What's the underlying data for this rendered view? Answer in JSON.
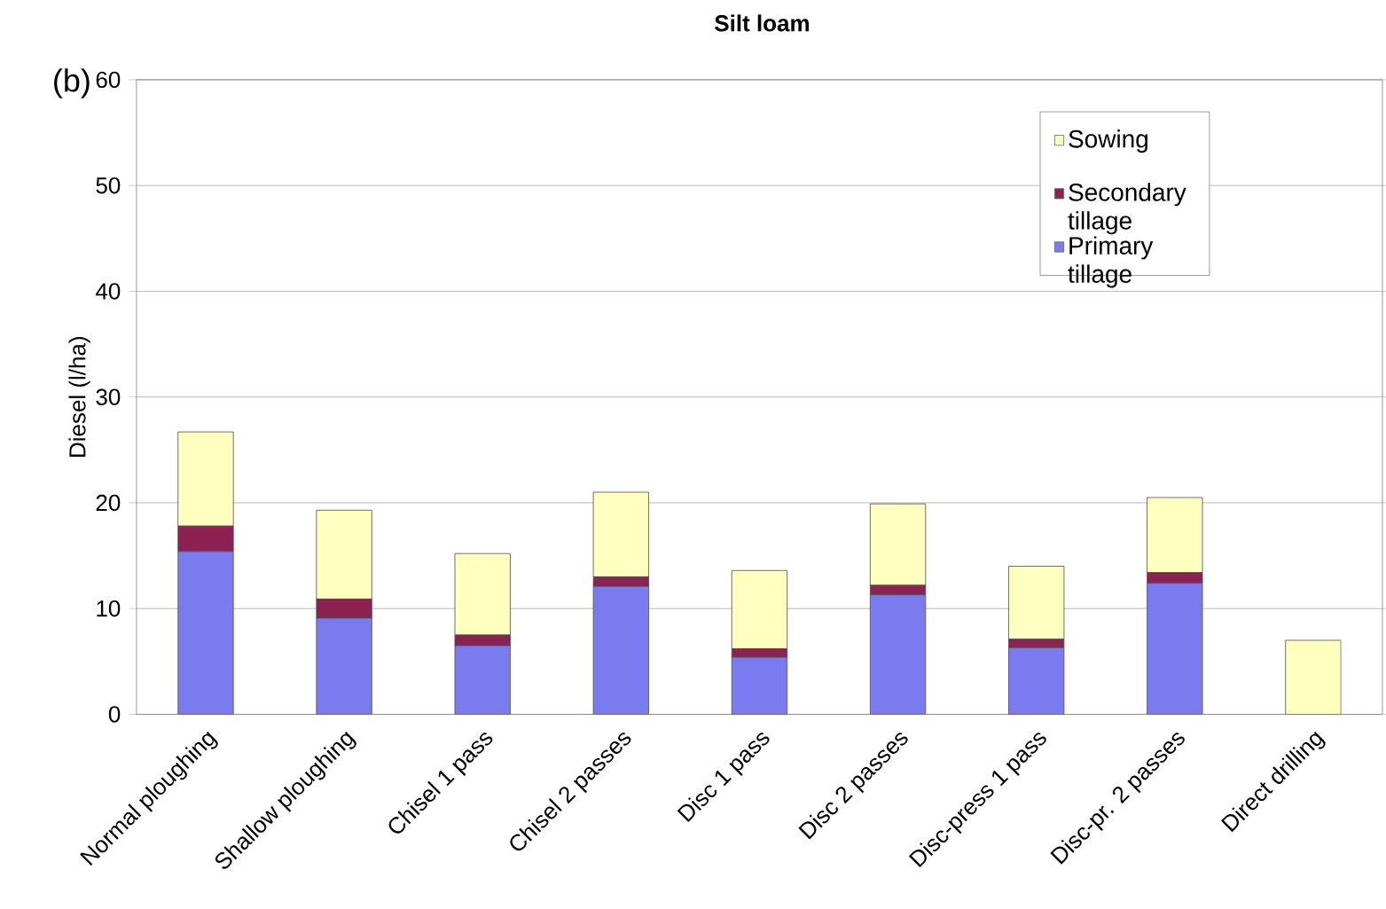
{
  "chart_data": {
    "type": "bar",
    "title": "Silt loam",
    "annotations": [
      "(b)"
    ],
    "ylabel": "Diesel (l/ha)",
    "categories": [
      "Normal ploughing",
      "Shallow ploughing",
      "Chisel 1 pass",
      "Chisel 2 passes",
      "Disc 1 pass",
      "Disc 2 passes",
      "Disc-press 1 pass",
      "Disc-pr. 2 passes",
      "Direct drilling"
    ],
    "stacked": true,
    "series": [
      {
        "name": "Primary tillage",
        "color": "#7b7bf0",
        "values": [
          15.4,
          9.1,
          6.5,
          12.1,
          5.4,
          11.3,
          6.3,
          12.4,
          0
        ]
      },
      {
        "name": "Secondary tillage",
        "color": "#8b2252",
        "values": [
          2.4,
          1.8,
          1.0,
          0.9,
          0.8,
          0.9,
          0.8,
          1.0,
          0
        ]
      },
      {
        "name": "Sowing",
        "color": "#ffffc0",
        "values": [
          8.9,
          8.4,
          7.7,
          8.0,
          7.4,
          7.7,
          6.9,
          7.1,
          7.0
        ]
      }
    ],
    "ylim": [
      0,
      60
    ],
    "yticks": [
      0,
      10,
      20,
      30,
      40,
      50,
      60
    ],
    "grid": "y",
    "legend": "top right"
  }
}
